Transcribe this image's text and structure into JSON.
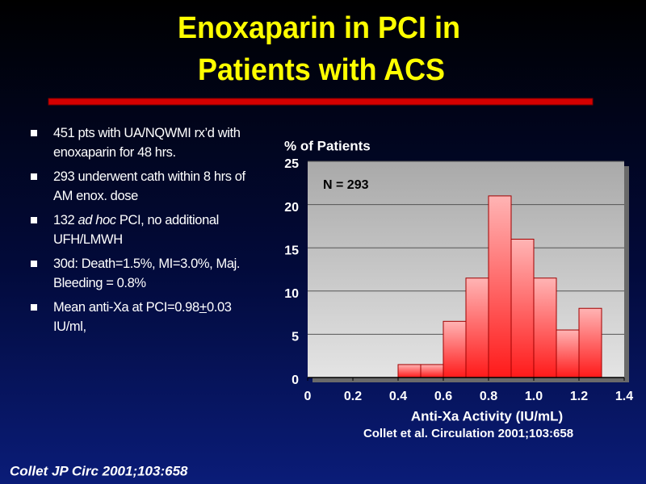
{
  "slide": {
    "title": [
      "Enoxaparin in PCI in",
      "Patients with ACS"
    ],
    "bullets": [
      [
        "451 pts with UA/NQWMI rx’d with enoxaparin  for 48 hrs."
      ],
      [
        "293 underwent cath within 8 hrs of AM enox. dose"
      ],
      [
        "132 ",
        "ad hoc",
        " PCI, no additional UFH/LMWH"
      ],
      [
        "30d:  Death=1.5%, MI=3.0%, Maj. Bleeding = 0.8%"
      ],
      [
        "Mean anti-Xa at PCI=0.98",
        "+",
        "0.03 IU/ml,"
      ]
    ],
    "footer": "Collet JP Circ 2001;103:658"
  },
  "chart_data": {
    "type": "histogram",
    "y_label": "% of Patients",
    "x_label": "Anti-Xa Activity (IU/mL)",
    "annotation": "N = 293",
    "source": "Collet et al. Circulation 2001;103:658",
    "bins": [
      0.4,
      0.5,
      0.6,
      0.7,
      0.8,
      0.9,
      1.0,
      1.1,
      1.2,
      1.3
    ],
    "values": [
      1.5,
      1.5,
      6.5,
      11.5,
      21,
      16,
      11.5,
      5.5,
      8
    ],
    "color": "#ff1a1a",
    "xlim": [
      0,
      1.4
    ],
    "xticks": [
      0,
      0.2,
      0.4,
      0.6,
      0.8,
      {
        "value": 1,
        "label": "1.0"
      },
      1.2,
      1.4
    ],
    "ylim": [
      0,
      25
    ],
    "yticks": [
      0,
      5,
      10,
      15,
      20,
      25
    ],
    "grid": true
  }
}
